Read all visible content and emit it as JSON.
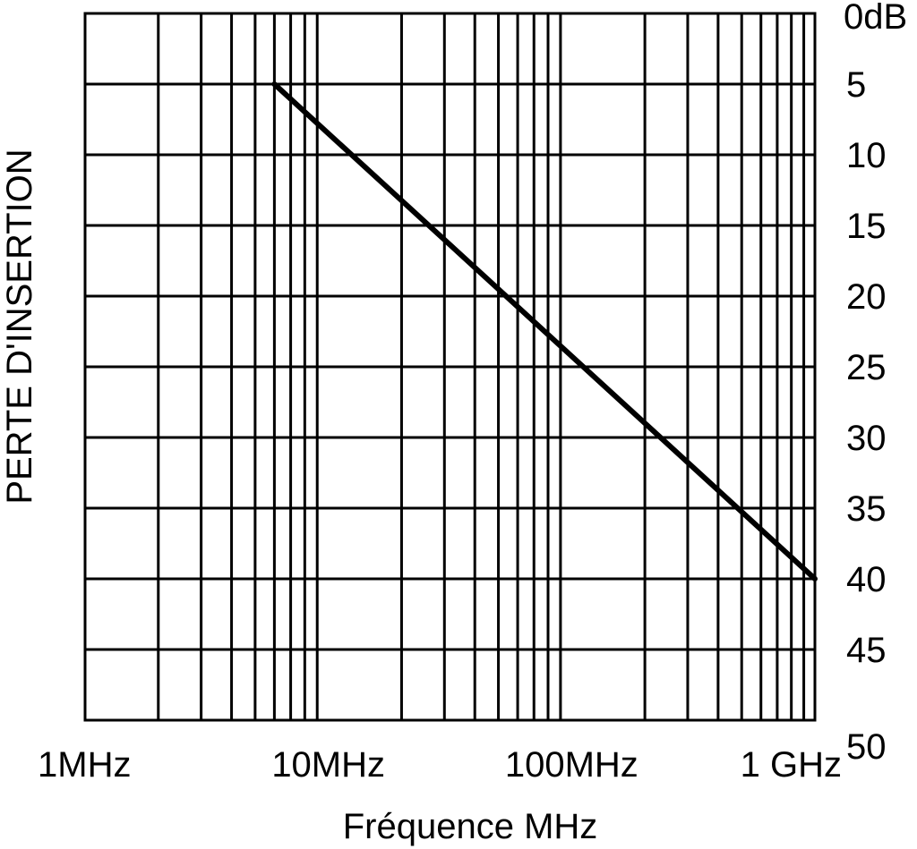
{
  "chart_data": {
    "type": "line",
    "title": "",
    "xlabel": "Fréquence MHz",
    "ylabel": "PERTE D'INSERTION",
    "x_scale": "log",
    "xlim": [
      1,
      1000
    ],
    "ylim": [
      0,
      50
    ],
    "y_inverted": true,
    "y_axis_side": "right",
    "grid": true,
    "x_ticks": [
      {
        "value": 1,
        "label": "1MHz"
      },
      {
        "value": 10,
        "label": "10MHz"
      },
      {
        "value": 100,
        "label": "100MHz"
      },
      {
        "value": 1000,
        "label": "1 GHz"
      }
    ],
    "y_ticks": [
      {
        "value": 0,
        "label": "0dB"
      },
      {
        "value": 5,
        "label": "5"
      },
      {
        "value": 10,
        "label": "10"
      },
      {
        "value": 15,
        "label": "15"
      },
      {
        "value": 20,
        "label": "20"
      },
      {
        "value": 25,
        "label": "25"
      },
      {
        "value": 30,
        "label": "30"
      },
      {
        "value": 35,
        "label": "35"
      },
      {
        "value": 40,
        "label": "40"
      },
      {
        "value": 45,
        "label": "45"
      },
      {
        "value": 50,
        "label": "50"
      }
    ],
    "series": [
      {
        "x": [
          6,
          1000
        ],
        "y": [
          5,
          40
        ]
      }
    ]
  }
}
